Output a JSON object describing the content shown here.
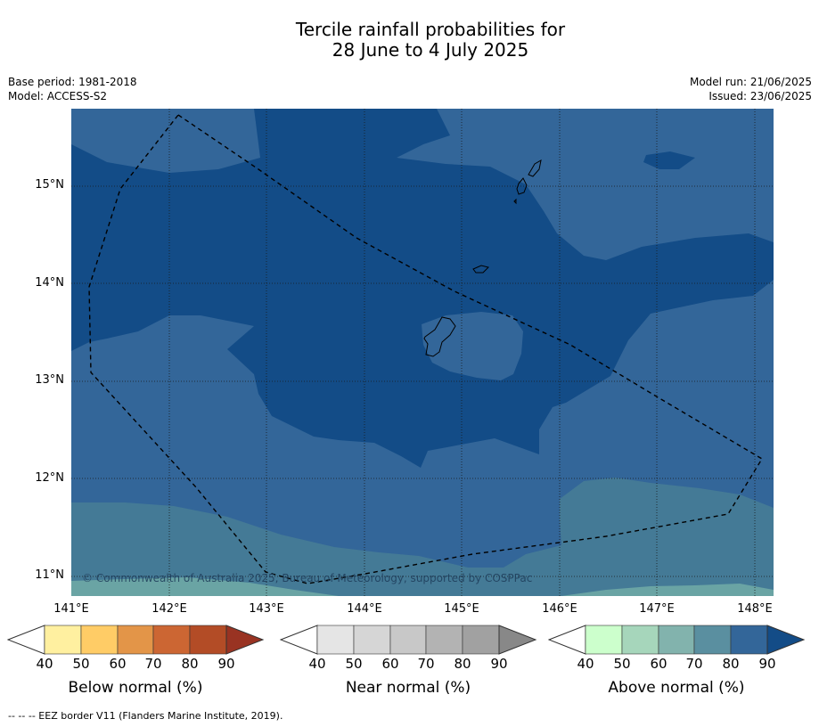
{
  "title": {
    "line1": "Tercile rainfall probabilities for",
    "line2": "28 June to 4 July 2025"
  },
  "meta": {
    "base_period": "Base period: 1981-2018",
    "model": "Model: ACCESS-S2",
    "model_run": "Model run: 21/06/2025",
    "issued": "Issued: 23/06/2025"
  },
  "map": {
    "copyright": "© Commonwealth of Australia 2025, Bureau of Meteorology, supported by COSPPac",
    "lat_labels": [
      "15°N",
      "14°N",
      "13°N",
      "12°N",
      "11°N"
    ],
    "lon_labels": [
      "141°E",
      "142°E",
      "143°E",
      "144°E",
      "145°E",
      "146°E",
      "147°E",
      "148°E"
    ],
    "colors": {
      "above_80": "#336699",
      "above_90": "#134c87",
      "above_70": "#447a96",
      "above_60": "#6aa4a4"
    }
  },
  "colorbars": [
    {
      "name": "below",
      "label": "Below normal (%)",
      "ticks": [
        "40",
        "50",
        "60",
        "70",
        "80",
        "90"
      ],
      "colors": [
        "#fff0a0",
        "#ffcc66",
        "#e39548",
        "#cc6633",
        "#b34c26",
        "#993322"
      ]
    },
    {
      "name": "near",
      "label": "Near normal (%)",
      "ticks": [
        "40",
        "50",
        "60",
        "70",
        "80",
        "90"
      ],
      "colors": [
        "#e5e5e5",
        "#d6d6d6",
        "#c8c8c8",
        "#b3b3b3",
        "#a1a1a1",
        "#888888"
      ]
    },
    {
      "name": "above",
      "label": "Above normal (%)",
      "ticks": [
        "40",
        "50",
        "60",
        "70",
        "80",
        "90"
      ],
      "colors": [
        "#ccffcc",
        "#a6d6bb",
        "#82b3ad",
        "#5a8fa0",
        "#336699",
        "#134c87"
      ]
    }
  ],
  "footnote": "-- -- -- EEZ border V11 (Flanders Marine Institute, 2019)."
}
